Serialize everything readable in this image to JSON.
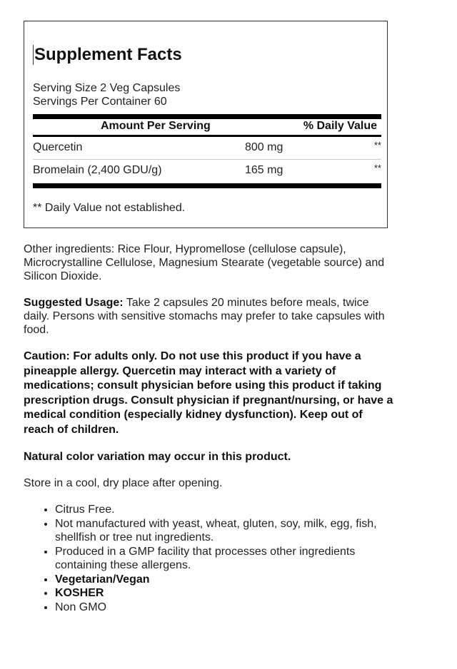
{
  "facts": {
    "title": "Supplement Facts",
    "serving_size": "Serving Size 2 Veg Capsules",
    "servings_per_container": "Servings Per Container 60",
    "header_amount": "Amount Per Serving",
    "header_dv": "% Daily Value",
    "rows": [
      {
        "name": "Quercetin",
        "amount": "800 mg",
        "dv": "**"
      },
      {
        "name": "Bromelain (2,400 GDU/g)",
        "amount": "165 mg",
        "dv": "**"
      }
    ],
    "footnote": "** Daily Value not established."
  },
  "other_ingredients": "Other ingredients: Rice Flour, Hypromellose (cellulose capsule), Microcrystalline Cellulose, Magnesium Stearate (vegetable source) and Silicon Dioxide.",
  "usage_label": "Suggested Usage:",
  "usage_text": " Take 2 capsules 20 minutes before meals, twice daily. Persons with sensitive stomachs may prefer to take capsules with food.",
  "caution": "Caution: For adults only. Do not use this product if you have a pineapple allergy. Quercetin may interact with a variety of medications; consult physician before using this product if taking prescription drugs. Consult physician if pregnant/nursing, or have a medical condition (especially kidney dysfunction). Keep out of reach of children.",
  "color_note": "Natural color variation may occur in this product.",
  "storage": "Store in a cool, dry place after opening.",
  "bullets": [
    {
      "text": "Citrus Free.",
      "bold": false
    },
    {
      "text": "Not manufactured with yeast, wheat, gluten, soy, milk, egg, fish, shellfish or tree nut ingredients.",
      "bold": false
    },
    {
      "text": "Produced in a GMP facility that processes other ingredients containing these allergens.",
      "bold": false
    },
    {
      "text": "Vegetarian/Vegan",
      "bold": true
    },
    {
      "text": "KOSHER",
      "bold": true
    },
    {
      "text": "Non GMO",
      "bold": false
    }
  ]
}
